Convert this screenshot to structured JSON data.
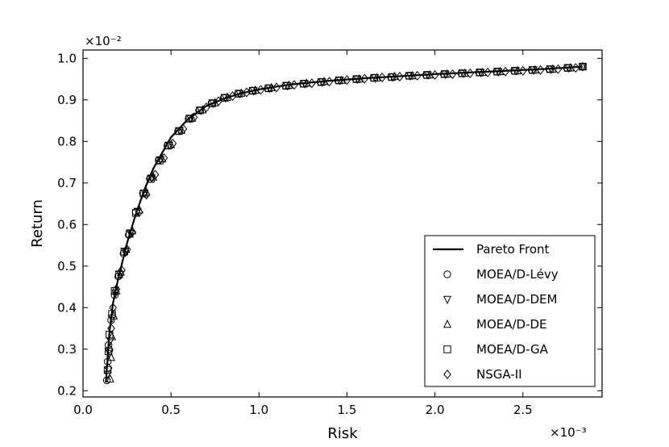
{
  "chart_data": {
    "type": "scatter",
    "xlabel": "Risk",
    "ylabel": "Return",
    "x_multiplier_label": "×10⁻³",
    "y_multiplier_label": "×10⁻²",
    "xlim": [
      0.0,
      2.95
    ],
    "ylim": [
      0.185,
      1.02
    ],
    "x_ticks": [
      0.0,
      0.5,
      1.0,
      1.5,
      2.0,
      2.5
    ],
    "x_tick_labels": [
      "0.0",
      "0.5",
      "1.0",
      "1.5",
      "2.0",
      "2.5"
    ],
    "y_ticks": [
      0.2,
      0.3,
      0.4,
      0.5,
      0.6,
      0.7,
      0.8,
      0.9,
      1.0
    ],
    "y_tick_labels": [
      "0.2",
      "0.3",
      "0.4",
      "0.5",
      "0.6",
      "0.7",
      "0.8",
      "0.9",
      "1.0"
    ],
    "grid": false,
    "legend_position": "lower-right",
    "pareto_front": {
      "name": "Pareto Front",
      "x": [
        0.13,
        0.14,
        0.15,
        0.17,
        0.2,
        0.25,
        0.3,
        0.35,
        0.4,
        0.5,
        0.6,
        0.7,
        0.8,
        0.9,
        1.0,
        1.1,
        1.2,
        1.4,
        1.6,
        1.8,
        2.0,
        2.2,
        2.4,
        2.6,
        2.84
      ],
      "y": [
        0.22,
        0.28,
        0.34,
        0.41,
        0.47,
        0.555,
        0.625,
        0.685,
        0.735,
        0.81,
        0.855,
        0.885,
        0.903,
        0.916,
        0.925,
        0.932,
        0.938,
        0.946,
        0.952,
        0.957,
        0.962,
        0.966,
        0.97,
        0.974,
        0.98
      ]
    },
    "series": [
      {
        "name": "MOEA/D-Lévy",
        "marker": "circle",
        "x": [
          0.135,
          0.14,
          0.145,
          0.16,
          0.18,
          0.2,
          0.23,
          0.26,
          0.3,
          0.34,
          0.38,
          0.43,
          0.48,
          0.54,
          0.6,
          0.66,
          0.73,
          0.8,
          0.88,
          0.96,
          1.05,
          1.15,
          1.25,
          1.35,
          1.45,
          1.55,
          1.65,
          1.75,
          1.85,
          1.95,
          2.05,
          2.15,
          2.25,
          2.35,
          2.45,
          2.55,
          2.65,
          2.75,
          2.84
        ],
        "y": [
          0.225,
          0.27,
          0.31,
          0.37,
          0.43,
          0.475,
          0.53,
          0.575,
          0.63,
          0.675,
          0.71,
          0.755,
          0.79,
          0.825,
          0.855,
          0.875,
          0.892,
          0.905,
          0.915,
          0.922,
          0.928,
          0.934,
          0.939,
          0.943,
          0.947,
          0.95,
          0.953,
          0.955,
          0.958,
          0.96,
          0.962,
          0.964,
          0.966,
          0.968,
          0.97,
          0.972,
          0.974,
          0.977,
          0.98
        ]
      },
      {
        "name": "MOEA/D-DEM",
        "marker": "triangle-down",
        "x": [
          0.14,
          0.15,
          0.155,
          0.165,
          0.185,
          0.21,
          0.24,
          0.27,
          0.31,
          0.35,
          0.39,
          0.44,
          0.49,
          0.55,
          0.61,
          0.67,
          0.74,
          0.81,
          0.89,
          0.97,
          1.06,
          1.16,
          1.26,
          1.36,
          1.46,
          1.56,
          1.66,
          1.76,
          1.86,
          1.96,
          2.06,
          2.16,
          2.26,
          2.36,
          2.46,
          2.56,
          2.66,
          2.76,
          2.84
        ],
        "y": [
          0.24,
          0.29,
          0.32,
          0.375,
          0.435,
          0.48,
          0.535,
          0.58,
          0.632,
          0.676,
          0.712,
          0.756,
          0.791,
          0.826,
          0.855,
          0.875,
          0.892,
          0.905,
          0.915,
          0.922,
          0.928,
          0.934,
          0.939,
          0.943,
          0.947,
          0.95,
          0.953,
          0.955,
          0.958,
          0.96,
          0.962,
          0.964,
          0.966,
          0.968,
          0.97,
          0.972,
          0.974,
          0.977,
          0.98
        ]
      },
      {
        "name": "MOEA/D-DE",
        "marker": "triangle-up",
        "x": [
          0.155,
          0.16,
          0.165,
          0.175,
          0.19,
          0.215,
          0.245,
          0.28,
          0.32,
          0.36,
          0.4,
          0.45,
          0.5,
          0.56,
          0.62,
          0.68,
          0.75,
          0.82,
          0.9,
          0.98,
          1.07,
          1.17,
          1.27,
          1.37,
          1.47,
          1.57,
          1.67,
          1.77,
          1.87,
          1.97,
          2.07,
          2.17,
          2.27,
          2.37,
          2.47,
          2.57,
          2.67,
          2.77,
          2.84
        ],
        "y": [
          0.228,
          0.28,
          0.33,
          0.38,
          0.44,
          0.485,
          0.54,
          0.585,
          0.635,
          0.678,
          0.714,
          0.758,
          0.792,
          0.827,
          0.856,
          0.876,
          0.893,
          0.906,
          0.916,
          0.923,
          0.929,
          0.935,
          0.94,
          0.944,
          0.947,
          0.95,
          0.953,
          0.956,
          0.958,
          0.96,
          0.962,
          0.964,
          0.966,
          0.968,
          0.97,
          0.972,
          0.974,
          0.977,
          0.98
        ]
      },
      {
        "name": "MOEA/D-GA",
        "marker": "square",
        "x": [
          0.14,
          0.145,
          0.15,
          0.165,
          0.18,
          0.205,
          0.235,
          0.265,
          0.3,
          0.345,
          0.385,
          0.435,
          0.485,
          0.545,
          0.605,
          0.665,
          0.735,
          0.805,
          0.885,
          0.965,
          1.055,
          1.155,
          1.255,
          1.355,
          1.455,
          1.555,
          1.655,
          1.755,
          1.855,
          1.955,
          2.055,
          2.155,
          2.255,
          2.355,
          2.455,
          2.555,
          2.655,
          2.755,
          2.84
        ],
        "y": [
          0.25,
          0.295,
          0.335,
          0.385,
          0.44,
          0.48,
          0.535,
          0.578,
          0.628,
          0.675,
          0.71,
          0.754,
          0.79,
          0.825,
          0.855,
          0.875,
          0.892,
          0.905,
          0.915,
          0.922,
          0.928,
          0.934,
          0.939,
          0.943,
          0.947,
          0.95,
          0.953,
          0.955,
          0.958,
          0.96,
          0.962,
          0.964,
          0.966,
          0.968,
          0.97,
          0.972,
          0.974,
          0.977,
          0.98
        ]
      },
      {
        "name": "NSGA-II",
        "marker": "diamond",
        "x": [
          0.145,
          0.15,
          0.16,
          0.17,
          0.19,
          0.22,
          0.25,
          0.28,
          0.32,
          0.36,
          0.41,
          0.46,
          0.51,
          0.57,
          0.63,
          0.7,
          0.77,
          0.85,
          0.93,
          1.01,
          1.1,
          1.2,
          1.3,
          1.4,
          1.5,
          1.6,
          1.7,
          1.8,
          1.9,
          2.0,
          2.1,
          2.2,
          2.3,
          2.4,
          2.5,
          2.6,
          2.7,
          2.8
        ],
        "y": [
          0.255,
          0.3,
          0.35,
          0.4,
          0.445,
          0.49,
          0.54,
          0.582,
          0.63,
          0.672,
          0.72,
          0.76,
          0.795,
          0.83,
          0.858,
          0.882,
          0.897,
          0.909,
          0.918,
          0.924,
          0.93,
          0.936,
          0.94,
          0.944,
          0.948,
          0.951,
          0.954,
          0.956,
          0.958,
          0.96,
          0.962,
          0.964,
          0.966,
          0.968,
          0.97,
          0.972,
          0.974,
          0.977
        ]
      }
    ]
  }
}
